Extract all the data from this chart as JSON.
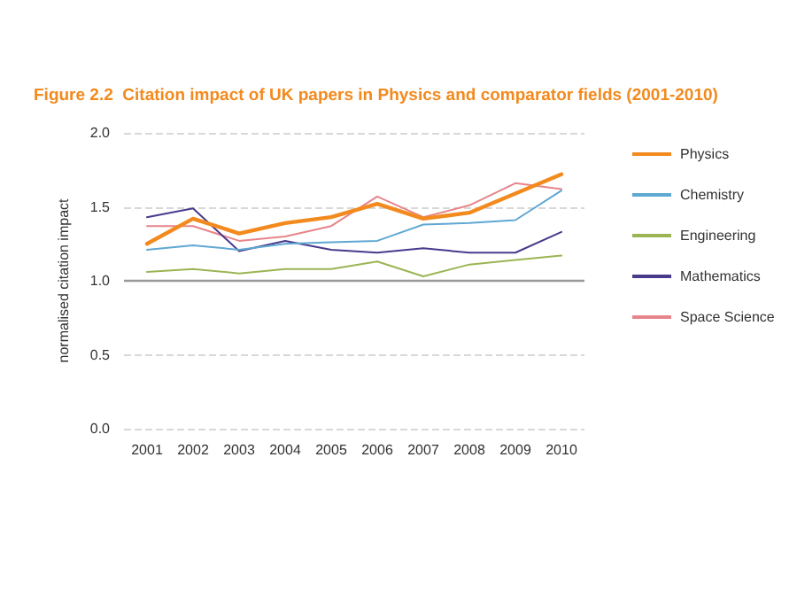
{
  "chart_data": {
    "type": "line",
    "title": "Figure 2.2  Citation impact of UK papers in Physics and comparator fields (2001-2010)",
    "ylabel": "normalised citation impact",
    "categories": [
      "2001",
      "2002",
      "2003",
      "2004",
      "2005",
      "2006",
      "2007",
      "2008",
      "2009",
      "2010"
    ],
    "series": [
      {
        "name": "Physics",
        "color": "#f28a1e",
        "values": [
          1.25,
          1.42,
          1.32,
          1.39,
          1.43,
          1.52,
          1.42,
          1.46,
          1.59,
          1.72
        ]
      },
      {
        "name": "Chemistry",
        "color": "#5fa8d3",
        "values": [
          1.21,
          1.24,
          1.21,
          1.25,
          1.26,
          1.27,
          1.38,
          1.39,
          1.41,
          1.61
        ]
      },
      {
        "name": "Engineering",
        "color": "#9bb553",
        "values": [
          1.06,
          1.08,
          1.05,
          1.08,
          1.08,
          1.13,
          1.03,
          1.11,
          1.14,
          1.17
        ]
      },
      {
        "name": "Mathematics",
        "color": "#4a3a8c",
        "values": [
          1.43,
          1.49,
          1.2,
          1.27,
          1.21,
          1.19,
          1.22,
          1.19,
          1.19,
          1.33
        ]
      },
      {
        "name": "Space Science",
        "color": "#e6858a",
        "values": [
          1.37,
          1.37,
          1.27,
          1.3,
          1.37,
          1.57,
          1.43,
          1.51,
          1.66,
          1.62
        ]
      }
    ],
    "ylim": [
      0,
      2
    ],
    "yticks": [
      {
        "value": 0,
        "label": "0.0"
      },
      0.5,
      {
        "value": 1,
        "label": "1.0"
      },
      1.5,
      {
        "value": 2,
        "label": "2.0"
      }
    ],
    "grid": "y",
    "legend": "right",
    "marker": "none",
    "line_style": "solid",
    "ref_lines": [
      {
        "axis": "y",
        "value": 1,
        "color": "#999999"
      }
    ]
  }
}
